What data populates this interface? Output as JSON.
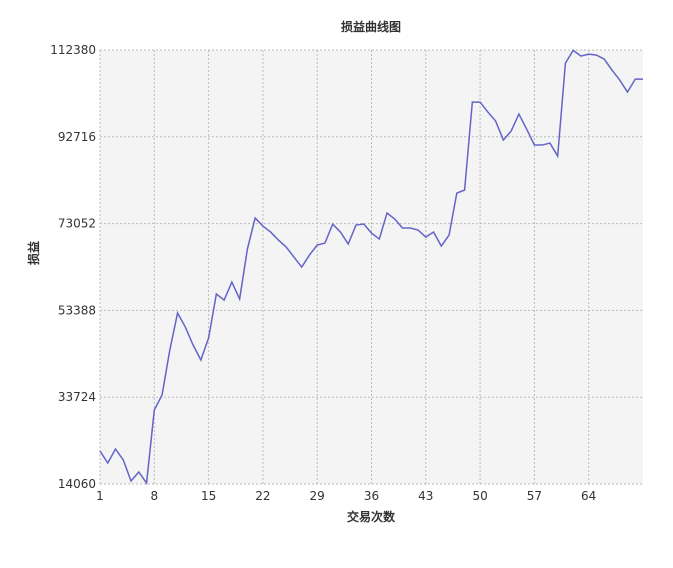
{
  "chart_data": {
    "type": "line",
    "title": "损益曲线图",
    "x_label": "交易次数",
    "y_label": "损益",
    "x": [
      1,
      2,
      3,
      4,
      5,
      6,
      7,
      8,
      9,
      10,
      11,
      12,
      13,
      14,
      15,
      16,
      17,
      18,
      19,
      20,
      21,
      22,
      23,
      24,
      25,
      26,
      27,
      28,
      29,
      30,
      31,
      32,
      33,
      34,
      35,
      36,
      37,
      38,
      39,
      40,
      41,
      42,
      43,
      44,
      45,
      46,
      47,
      48,
      49,
      50,
      51,
      52,
      53,
      54,
      55,
      56,
      57,
      58,
      59,
      60,
      61,
      62,
      63,
      64,
      65,
      66,
      67,
      68,
      69,
      70,
      71
    ],
    "series": [
      {
        "name": "损益",
        "color": "#6464c8",
        "values": [
          21535,
          18816,
          21987,
          19496,
          14740,
          16778,
          14286,
          30821,
          34219,
          44411,
          52791,
          49620,
          45543,
          42146,
          47129,
          57095,
          55736,
          59813,
          55963,
          67288,
          74310,
          72498,
          71139,
          69327,
          67741,
          65476,
          63211,
          65929,
          68194,
          68647,
          72951,
          71139,
          68421,
          72724,
          72951,
          70912,
          69554,
          75443,
          74084,
          72045,
          72045,
          71592,
          70006,
          71139,
          67968,
          70459,
          79973,
          80652,
          100585,
          100585,
          98320,
          96281,
          91978,
          94016,
          97866,
          94469,
          90845,
          90845,
          91298,
          88353,
          109417,
          112300,
          111001,
          111454,
          111228,
          110322,
          107830,
          105566,
          102848,
          105792,
          105792
        ]
      }
    ],
    "xlim": [
      1,
      71
    ],
    "xticks": [
      1,
      8,
      15,
      22,
      29,
      36,
      43,
      50,
      57,
      64
    ],
    "ylim": [
      14060,
      112380
    ],
    "yticks": [
      14060,
      33724,
      53388,
      73052,
      92716,
      112380
    ],
    "grid": true
  }
}
